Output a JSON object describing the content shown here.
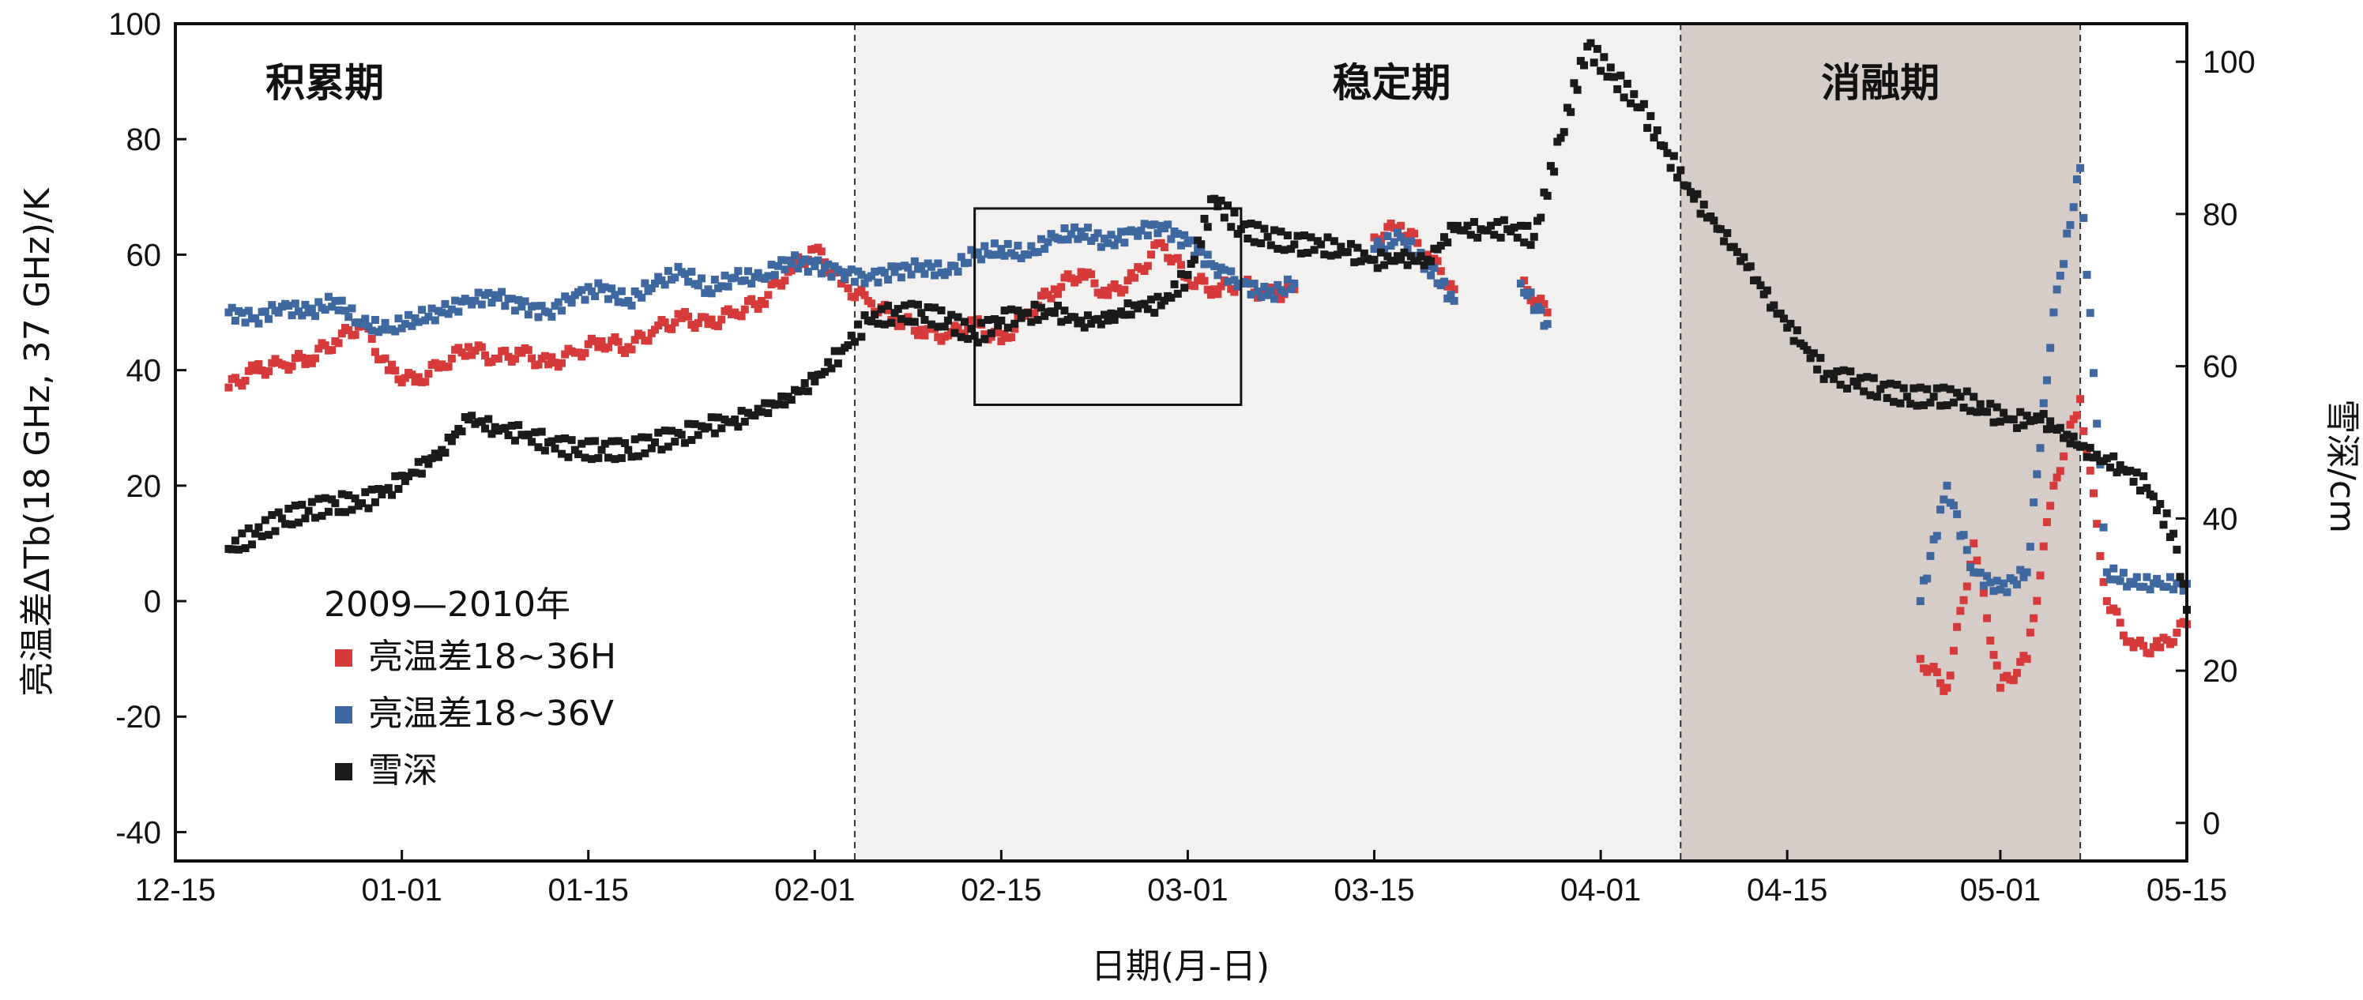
{
  "chart_data": {
    "type": "scatter",
    "title": "",
    "xlabel": "日期(月-日)",
    "ylabel": "亮温差ΔTb(18 GHz, 37 GHz)/K",
    "ylabel_right": "雪深/cm",
    "x_range": [
      "2009-12-15",
      "2010-05-15"
    ],
    "ylim": [
      -45,
      100
    ],
    "ylim_right": [
      -5,
      105
    ],
    "x_ticks": [
      {
        "date": "2009-12-15",
        "label": "12-15"
      },
      {
        "date": "2010-01-01",
        "label": "01-01"
      },
      {
        "date": "2010-01-15",
        "label": "01-15"
      },
      {
        "date": "2010-02-01",
        "label": "02-01"
      },
      {
        "date": "2010-02-15",
        "label": "02-15"
      },
      {
        "date": "2010-03-01",
        "label": "03-01"
      },
      {
        "date": "2010-03-15",
        "label": "03-15"
      },
      {
        "date": "2010-04-01",
        "label": "04-01"
      },
      {
        "date": "2010-04-15",
        "label": "04-15"
      },
      {
        "date": "2010-05-01",
        "label": "05-01"
      },
      {
        "date": "2010-05-15",
        "label": "05-15"
      }
    ],
    "y_ticks": [
      -40,
      -20,
      0,
      20,
      40,
      60,
      80,
      100
    ],
    "y_ticks_right": [
      0,
      20,
      40,
      60,
      80,
      100
    ],
    "phases": [
      {
        "name": "积累期",
        "start": "2009-12-15",
        "end": "2010-02-04",
        "fill": "#ffffff"
      },
      {
        "name": "稳定期",
        "start": "2010-02-04",
        "end": "2010-04-07",
        "fill": "#f3f1f0"
      },
      {
        "name": "消融期",
        "start": "2010-04-07",
        "end": "2010-05-07",
        "fill": "#d6ccc8"
      }
    ],
    "highlight_box": {
      "x": [
        "2010-02-13",
        "2010-03-05"
      ],
      "y": [
        34,
        68
      ]
    },
    "legend": {
      "title": "2009—2010年",
      "position": "bottom-left",
      "entries": [
        {
          "label": "亮温差18~36H",
          "color": "#d63a3a"
        },
        {
          "label": "亮温差18~36V",
          "color": "#3f68a0"
        },
        {
          "label": "雪深",
          "color": "#1a1a1a"
        }
      ]
    },
    "series": [
      {
        "key": "h",
        "axis": "left",
        "color": "#d63a3a",
        "x": [
          "2009-12-19",
          "2009-12-21",
          "2009-12-23",
          "2009-12-25",
          "2009-12-27",
          "2009-12-29",
          "2009-12-31",
          "2010-01-02",
          "2010-01-04",
          "2010-01-06",
          "2010-01-08",
          "2010-01-10",
          "2010-01-12",
          "2010-01-14",
          "2010-01-16",
          "2010-01-18",
          "2010-01-20",
          "2010-01-22",
          "2010-01-24",
          "2010-01-26",
          "2010-01-28",
          "2010-01-30",
          "2010-02-01",
          "2010-02-03",
          "2010-02-05",
          "2010-02-07",
          "2010-02-09",
          "2010-02-11",
          "2010-02-13",
          "2010-02-15",
          "2010-02-17",
          "2010-02-19",
          "2010-02-21",
          "2010-02-23",
          "2010-02-25",
          "2010-02-27",
          "2010-03-01",
          "2010-03-03",
          "2010-03-05",
          "2010-03-07",
          "2010-03-09",
          "2010-03-15",
          "2010-03-17",
          "2010-03-19",
          "2010-03-21",
          "2010-03-26",
          "2010-03-28",
          "2010-04-25",
          "2010-04-27",
          "2010-04-29",
          "2010-05-01",
          "2010-05-03",
          "2010-05-05",
          "2010-05-07",
          "2010-05-09",
          "2010-05-11",
          "2010-05-13",
          "2010-05-15"
        ],
        "y": [
          37,
          40,
          41,
          42,
          45,
          48,
          40,
          38,
          41,
          44,
          42,
          43,
          41,
          43,
          45,
          44,
          47,
          49,
          48,
          50,
          52,
          57,
          61,
          55,
          52,
          49,
          47,
          46,
          48,
          45,
          50,
          54,
          57,
          53,
          56,
          62,
          56,
          54,
          55,
          53,
          54,
          63,
          65,
          60,
          54,
          55,
          50,
          -10,
          -15,
          10,
          -15,
          -10,
          20,
          35,
          0,
          -8,
          -8,
          -4
        ]
      },
      {
        "key": "v",
        "axis": "left",
        "color": "#3f68a0",
        "x": [
          "2009-12-19",
          "2009-12-21",
          "2009-12-23",
          "2009-12-25",
          "2009-12-27",
          "2009-12-29",
          "2009-12-31",
          "2010-01-02",
          "2010-01-04",
          "2010-01-06",
          "2010-01-08",
          "2010-01-10",
          "2010-01-12",
          "2010-01-14",
          "2010-01-16",
          "2010-01-18",
          "2010-01-20",
          "2010-01-22",
          "2010-01-24",
          "2010-01-26",
          "2010-01-28",
          "2010-01-30",
          "2010-02-01",
          "2010-02-03",
          "2010-02-05",
          "2010-02-07",
          "2010-02-09",
          "2010-02-11",
          "2010-02-13",
          "2010-02-15",
          "2010-02-17",
          "2010-02-19",
          "2010-02-21",
          "2010-02-23",
          "2010-02-25",
          "2010-02-27",
          "2010-03-01",
          "2010-03-03",
          "2010-03-05",
          "2010-03-07",
          "2010-03-09",
          "2010-03-15",
          "2010-03-17",
          "2010-03-19",
          "2010-03-21",
          "2010-03-26",
          "2010-03-28",
          "2010-04-25",
          "2010-04-27",
          "2010-04-29",
          "2010-05-01",
          "2010-05-03",
          "2010-05-05",
          "2010-05-07",
          "2010-05-09",
          "2010-05-11",
          "2010-05-13",
          "2010-05-15"
        ],
        "y": [
          50,
          49,
          51,
          50,
          52,
          48,
          47,
          49,
          50,
          52,
          53,
          51,
          50,
          53,
          54,
          52,
          55,
          57,
          54,
          56,
          56,
          59,
          58,
          57,
          56,
          57,
          58,
          57,
          60,
          61,
          60,
          63,
          64,
          62,
          64,
          65,
          62,
          58,
          55,
          53,
          55,
          61,
          63,
          58,
          52,
          55,
          48,
          0,
          20,
          5,
          2,
          5,
          50,
          75,
          5,
          3,
          3,
          3
        ]
      },
      {
        "key": "snow",
        "axis": "right",
        "color": "#1a1a1a",
        "x": [
          "2009-12-19",
          "2009-12-21",
          "2009-12-23",
          "2009-12-25",
          "2009-12-27",
          "2009-12-29",
          "2009-12-31",
          "2010-01-02",
          "2010-01-04",
          "2010-01-06",
          "2010-01-08",
          "2010-01-10",
          "2010-01-12",
          "2010-01-14",
          "2010-01-16",
          "2010-01-18",
          "2010-01-20",
          "2010-01-22",
          "2010-01-24",
          "2010-01-26",
          "2010-01-28",
          "2010-01-30",
          "2010-02-01",
          "2010-02-03",
          "2010-02-05",
          "2010-02-07",
          "2010-02-09",
          "2010-02-11",
          "2010-02-13",
          "2010-02-15",
          "2010-02-17",
          "2010-02-19",
          "2010-02-21",
          "2010-02-23",
          "2010-02-25",
          "2010-02-27",
          "2010-03-01",
          "2010-03-03",
          "2010-03-05",
          "2010-03-07",
          "2010-03-09",
          "2010-03-11",
          "2010-03-13",
          "2010-03-15",
          "2010-03-17",
          "2010-03-19",
          "2010-03-21",
          "2010-03-23",
          "2010-03-25",
          "2010-03-27",
          "2010-03-29",
          "2010-03-31",
          "2010-04-02",
          "2010-04-04",
          "2010-04-06",
          "2010-04-08",
          "2010-04-10",
          "2010-04-12",
          "2010-04-14",
          "2010-04-16",
          "2010-04-18",
          "2010-04-20",
          "2010-04-22",
          "2010-04-24",
          "2010-04-26",
          "2010-04-28",
          "2010-04-30",
          "2010-05-02",
          "2010-05-04",
          "2010-05-06",
          "2010-05-08",
          "2010-05-10",
          "2010-05-12",
          "2010-05-14",
          "2010-05-15"
        ],
        "y": [
          36,
          38,
          40,
          41,
          42,
          42,
          44,
          46,
          49,
          53,
          52,
          51,
          50,
          49,
          49,
          49,
          50,
          51,
          52,
          53,
          54,
          56,
          58,
          62,
          66,
          67,
          67,
          66,
          64,
          66,
          67,
          67,
          66,
          66,
          68,
          68,
          72,
          82,
          78,
          77,
          76,
          76,
          75,
          74,
          74,
          74,
          78,
          78,
          78,
          77,
          90,
          102,
          98,
          94,
          88,
          82,
          78,
          73,
          68,
          63,
          59,
          58,
          57,
          56,
          56,
          56,
          54,
          53,
          53,
          51,
          48,
          47,
          44,
          38,
          28
        ]
      }
    ]
  }
}
